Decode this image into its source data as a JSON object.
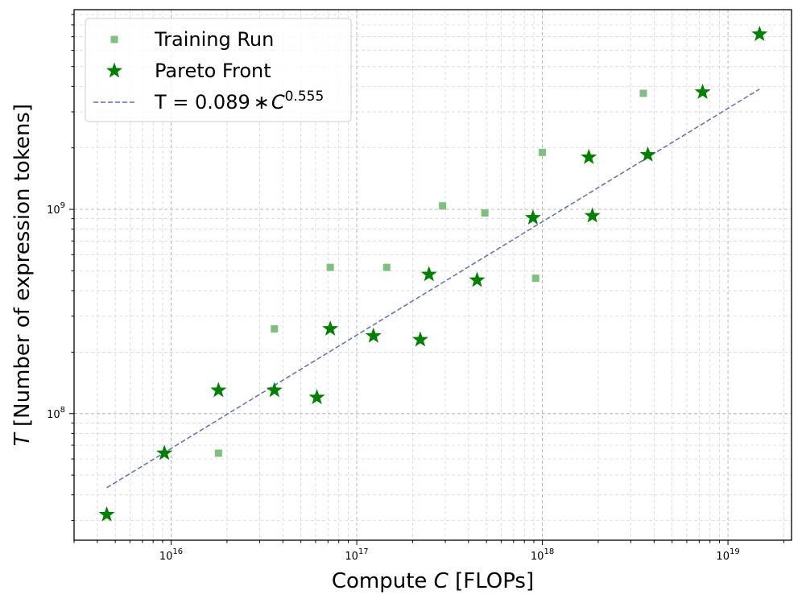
{
  "chart_data": {
    "type": "scatter",
    "x_scale": "log",
    "y_scale": "log",
    "xlim": [
      3000000000000000.0,
      2.2e+19
    ],
    "ylim": [
      24000000.0,
      9500000000.0
    ],
    "xlabel": {
      "pre": "Compute ",
      "var": "C",
      "post": " [FLOPs]"
    },
    "ylabel": {
      "var": "T",
      "post": " [Number of expression tokens]"
    },
    "x_ticks": [
      {
        "base": "10",
        "exp": "16",
        "value": 1e+16
      },
      {
        "base": "10",
        "exp": "17",
        "value": 1e+17
      },
      {
        "base": "10",
        "exp": "18",
        "value": 1e+18
      },
      {
        "base": "10",
        "exp": "19",
        "value": 1e+19
      }
    ],
    "y_ticks": [
      {
        "base": "10",
        "exp": "8",
        "value": 100000000.0
      },
      {
        "base": "10",
        "exp": "9",
        "value": 1000000000.0
      }
    ],
    "grid": true,
    "legend_position": "top-left",
    "series": [
      {
        "name": "Training Run",
        "marker": "square",
        "color": "#7fbf7f",
        "points": [
          [
            1.8e+16,
            64000000.0
          ],
          [
            3.6e+16,
            260000000.0
          ],
          [
            7.2e+16,
            520000000.0
          ],
          [
            1.45e+17,
            520000000.0
          ],
          [
            2.9e+17,
            1040000000.0
          ],
          [
            4.9e+17,
            960000000.0
          ],
          [
            9.2e+17,
            460000000.0
          ],
          [
            1e+18,
            1900000000.0
          ],
          [
            3.5e+18,
            3700000000.0
          ]
        ]
      },
      {
        "name": "Pareto Front",
        "marker": "star",
        "color": "#008000",
        "points": [
          [
            4500000000000000.0,
            32000000.0
          ],
          [
            9200000000000000.0,
            64000000.0
          ],
          [
            1.8e+16,
            130000000.0
          ],
          [
            3.6e+16,
            130000000.0
          ],
          [
            6.1e+16,
            120000000.0
          ],
          [
            7.2e+16,
            260000000.0
          ],
          [
            1.23e+17,
            240000000.0
          ],
          [
            2.2e+17,
            230000000.0
          ],
          [
            2.45e+17,
            480000000.0
          ],
          [
            4.45e+17,
            450000000.0
          ],
          [
            8.9e+17,
            910000000.0
          ],
          [
            1.78e+18,
            1800000000.0
          ],
          [
            1.86e+18,
            930000000.0
          ],
          [
            3.7e+18,
            1850000000.0
          ],
          [
            7.3e+18,
            3750000000.0
          ],
          [
            1.48e+19,
            7200000000.0
          ]
        ]
      },
      {
        "name": "T = 0.089 * C^0.555",
        "legend_label": {
          "pre": "T = 0.089",
          "star": "∗",
          "var": "C",
          "exp": "0.555"
        },
        "type": "line",
        "style": "dashed",
        "color": "#5b6fb5",
        "coef": 0.089,
        "power": 0.555,
        "x_range": [
          4500000000000000.0,
          1.48e+19
        ]
      }
    ]
  }
}
